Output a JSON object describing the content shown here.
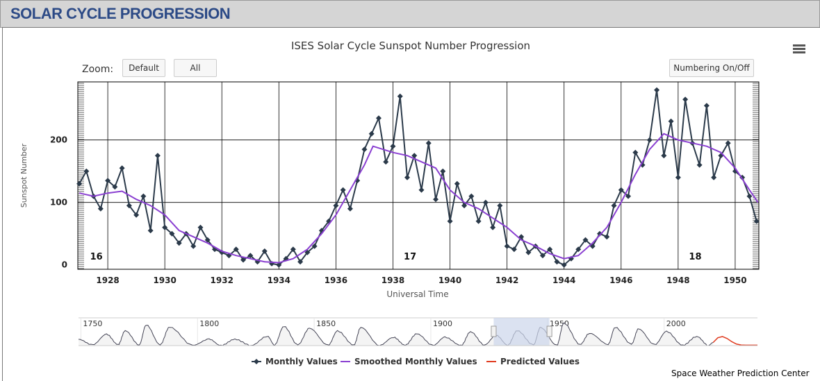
{
  "header": {
    "title": "SOLAR CYCLE PROGRESSION"
  },
  "toolbar": {
    "zoom_label": "Zoom:",
    "default_label": "Default",
    "all_label": "All",
    "numbering_label": "Numbering On/Off",
    "menu_icon": "hamburger-menu-icon"
  },
  "credit": "Space Weather Prediction Center",
  "colors": {
    "monthly": "#2b3a4a",
    "smoothed": "#8a3fd1",
    "predicted": "#e03a1e",
    "header_text": "#2c4a86",
    "navigator_selection": "#ccd6eb"
  },
  "chart_data": {
    "type": "line",
    "title": "ISES Solar Cycle Sunspot Number Progression",
    "xlabel": "Universal Time",
    "ylabel": "Sunspot Number",
    "xlim": [
      1926.95,
      1950.83
    ],
    "ylim": [
      -7,
      293
    ],
    "xticks": [
      "1928",
      "1930",
      "1932",
      "1934",
      "1936",
      "1938",
      "1940",
      "1942",
      "1944",
      "1946",
      "1948",
      "1950"
    ],
    "yticks": [
      "0",
      "100",
      "200"
    ],
    "grid": true,
    "legend_placement": "bottom",
    "cycle_labels": [
      {
        "label": "16",
        "x": 1927.6
      },
      {
        "label": "17",
        "x": 1938.6
      },
      {
        "label": "18",
        "x": 1948.6
      }
    ],
    "series": [
      {
        "name": "Monthly Values",
        "points": [
          [
            1927,
            130
          ],
          [
            1927.25,
            150
          ],
          [
            1927.5,
            110
          ],
          [
            1927.75,
            90
          ],
          [
            1928,
            135
          ],
          [
            1928.25,
            125
          ],
          [
            1928.5,
            155
          ],
          [
            1928.75,
            95
          ],
          [
            1929,
            80
          ],
          [
            1929.25,
            110
          ],
          [
            1929.5,
            55
          ],
          [
            1929.75,
            175
          ],
          [
            1930,
            60
          ],
          [
            1930.25,
            50
          ],
          [
            1930.5,
            35
          ],
          [
            1930.75,
            50
          ],
          [
            1931,
            30
          ],
          [
            1931.25,
            60
          ],
          [
            1931.5,
            40
          ],
          [
            1931.75,
            25
          ],
          [
            1932,
            20
          ],
          [
            1932.25,
            15
          ],
          [
            1932.5,
            25
          ],
          [
            1932.75,
            8
          ],
          [
            1933,
            15
          ],
          [
            1933.25,
            5
          ],
          [
            1933.5,
            22
          ],
          [
            1933.75,
            2
          ],
          [
            1934,
            0
          ],
          [
            1934.25,
            10
          ],
          [
            1934.5,
            25
          ],
          [
            1934.75,
            5
          ],
          [
            1935,
            20
          ],
          [
            1935.25,
            30
          ],
          [
            1935.5,
            55
          ],
          [
            1935.75,
            70
          ],
          [
            1936,
            95
          ],
          [
            1936.25,
            120
          ],
          [
            1936.5,
            90
          ],
          [
            1936.75,
            135
          ],
          [
            1937,
            185
          ],
          [
            1937.25,
            210
          ],
          [
            1937.5,
            235
          ],
          [
            1937.75,
            165
          ],
          [
            1938,
            190
          ],
          [
            1938.25,
            270
          ],
          [
            1938.5,
            140
          ],
          [
            1938.75,
            175
          ],
          [
            1939,
            120
          ],
          [
            1939.25,
            195
          ],
          [
            1939.5,
            105
          ],
          [
            1939.75,
            150
          ],
          [
            1940,
            70
          ],
          [
            1940.25,
            130
          ],
          [
            1940.5,
            95
          ],
          [
            1940.75,
            110
          ],
          [
            1941,
            70
          ],
          [
            1941.25,
            100
          ],
          [
            1941.5,
            60
          ],
          [
            1941.75,
            95
          ],
          [
            1942,
            30
          ],
          [
            1942.25,
            25
          ],
          [
            1942.5,
            45
          ],
          [
            1942.75,
            20
          ],
          [
            1943,
            30
          ],
          [
            1943.25,
            15
          ],
          [
            1943.5,
            25
          ],
          [
            1943.75,
            5
          ],
          [
            1944,
            0
          ],
          [
            1944.25,
            10
          ],
          [
            1944.5,
            25
          ],
          [
            1944.75,
            40
          ],
          [
            1945,
            30
          ],
          [
            1945.25,
            50
          ],
          [
            1945.5,
            45
          ],
          [
            1945.75,
            95
          ],
          [
            1946,
            120
          ],
          [
            1946.25,
            110
          ],
          [
            1946.5,
            180
          ],
          [
            1946.75,
            160
          ],
          [
            1947,
            200
          ],
          [
            1947.25,
            280
          ],
          [
            1947.5,
            175
          ],
          [
            1947.75,
            230
          ],
          [
            1948,
            140
          ],
          [
            1948.25,
            265
          ],
          [
            1948.5,
            195
          ],
          [
            1948.75,
            160
          ],
          [
            1949,
            255
          ],
          [
            1949.25,
            140
          ],
          [
            1949.5,
            175
          ],
          [
            1949.75,
            195
          ],
          [
            1950,
            150
          ],
          [
            1950.25,
            140
          ],
          [
            1950.5,
            110
          ],
          [
            1950.75,
            70
          ]
        ]
      },
      {
        "name": "Smoothed Monthly Values",
        "points": [
          [
            1927,
            115
          ],
          [
            1927.5,
            110
          ],
          [
            1928,
            115
          ],
          [
            1928.5,
            118
          ],
          [
            1929,
            105
          ],
          [
            1929.5,
            95
          ],
          [
            1930,
            80
          ],
          [
            1930.5,
            55
          ],
          [
            1931,
            45
          ],
          [
            1931.5,
            35
          ],
          [
            1932,
            22
          ],
          [
            1932.5,
            15
          ],
          [
            1933,
            10
          ],
          [
            1933.5,
            5
          ],
          [
            1934,
            3.5
          ],
          [
            1934.5,
            10
          ],
          [
            1935,
            25
          ],
          [
            1935.5,
            50
          ],
          [
            1936,
            80
          ],
          [
            1936.5,
            120
          ],
          [
            1937,
            160
          ],
          [
            1937.3,
            190
          ],
          [
            1938,
            180
          ],
          [
            1938.5,
            175
          ],
          [
            1939,
            165
          ],
          [
            1939.5,
            155
          ],
          [
            1940,
            120
          ],
          [
            1940.5,
            100
          ],
          [
            1941,
            90
          ],
          [
            1941.5,
            75
          ],
          [
            1942,
            60
          ],
          [
            1942.5,
            40
          ],
          [
            1943,
            30
          ],
          [
            1943.5,
            18
          ],
          [
            1944,
            10
          ],
          [
            1944.5,
            15
          ],
          [
            1945,
            35
          ],
          [
            1945.5,
            60
          ],
          [
            1946,
            100
          ],
          [
            1946.5,
            145
          ],
          [
            1947,
            185
          ],
          [
            1947.5,
            210
          ],
          [
            1948,
            200
          ],
          [
            1948.5,
            195
          ],
          [
            1949,
            190
          ],
          [
            1949.5,
            180
          ],
          [
            1950,
            155
          ],
          [
            1950.5,
            120
          ],
          [
            1950.8,
            100
          ]
        ]
      },
      {
        "name": "Predicted Values",
        "points": []
      }
    ],
    "navigator": {
      "xlim": [
        1749,
        2040
      ],
      "xticks": [
        "1750",
        "1800",
        "1850",
        "1900",
        "1950",
        "2000"
      ],
      "selection": [
        1926.95,
        1950.83
      ],
      "history": [
        [
          1749,
          80
        ],
        [
          1755,
          10
        ],
        [
          1761,
          144
        ],
        [
          1766,
          12
        ],
        [
          1769,
          190
        ],
        [
          1775,
          10
        ],
        [
          1778,
          264
        ],
        [
          1784,
          12
        ],
        [
          1788,
          235
        ],
        [
          1798,
          4
        ],
        [
          1805,
          82
        ],
        [
          1810,
          0
        ],
        [
          1816,
          81
        ],
        [
          1823,
          2
        ],
        [
          1830,
          119
        ],
        [
          1833,
          8
        ],
        [
          1837,
          245
        ],
        [
          1843,
          11
        ],
        [
          1848,
          220
        ],
        [
          1856,
          5
        ],
        [
          1860,
          186
        ],
        [
          1867,
          7
        ],
        [
          1870,
          232
        ],
        [
          1878,
          3
        ],
        [
          1884,
          106
        ],
        [
          1889,
          6
        ],
        [
          1894,
          150
        ],
        [
          1901,
          3
        ],
        [
          1906,
          107
        ],
        [
          1913,
          2
        ],
        [
          1917,
          176
        ],
        [
          1923,
          9
        ],
        [
          1928,
          131
        ],
        [
          1933,
          6
        ],
        [
          1937,
          190
        ],
        [
          1944,
          10
        ],
        [
          1947,
          230
        ],
        [
          1954,
          4
        ],
        [
          1957,
          285
        ],
        [
          1964,
          15
        ],
        [
          1968,
          157
        ],
        [
          1976,
          17
        ],
        [
          1979,
          232
        ],
        [
          1986,
          20
        ],
        [
          1989,
          212
        ],
        [
          1996,
          12
        ],
        [
          2001,
          180
        ],
        [
          2008,
          4
        ],
        [
          2014,
          116
        ],
        [
          2019,
          2
        ],
        [
          2021,
          40
        ]
      ],
      "predicted": [
        [
          2021,
          40
        ],
        [
          2023,
          100
        ],
        [
          2025,
          115
        ],
        [
          2027,
          90
        ],
        [
          2029,
          50
        ],
        [
          2031,
          20
        ],
        [
          2033,
          8
        ],
        [
          2035,
          5
        ],
        [
          2040,
          5
        ]
      ]
    }
  }
}
